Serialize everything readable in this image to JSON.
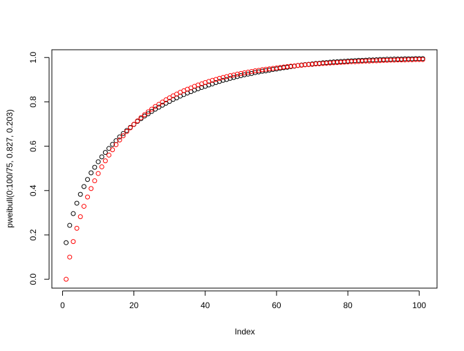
{
  "chart_data": {
    "type": "scatter",
    "xlabel": "Index",
    "ylabel": "pweibull(0:100/75, 0.827, 0.203)",
    "x": [
      1,
      2,
      3,
      4,
      5,
      6,
      7,
      8,
      9,
      10,
      11,
      12,
      13,
      14,
      15,
      16,
      17,
      18,
      19,
      20,
      21,
      22,
      23,
      24,
      25,
      26,
      27,
      28,
      29,
      30,
      31,
      32,
      33,
      34,
      35,
      36,
      37,
      38,
      39,
      40,
      41,
      42,
      43,
      44,
      45,
      46,
      47,
      48,
      49,
      50,
      51,
      52,
      53,
      54,
      55,
      56,
      57,
      58,
      59,
      60,
      61,
      62,
      63,
      64,
      65,
      66,
      67,
      68,
      69,
      70,
      71,
      72,
      73,
      74,
      75,
      76,
      77,
      78,
      79,
      80,
      81,
      82,
      83,
      84,
      85,
      86,
      87,
      88,
      89,
      90,
      91,
      92,
      93,
      94,
      95,
      96,
      97,
      98,
      99,
      100,
      101
    ],
    "series": [
      {
        "color": "#000000",
        "values": [
          0.165,
          0.243,
          0.296,
          0.343,
          0.383,
          0.418,
          0.45,
          0.48,
          0.505,
          0.53,
          0.552,
          0.572,
          0.59,
          0.608,
          0.625,
          0.642,
          0.657,
          0.671,
          0.685,
          0.698,
          0.712,
          0.724,
          0.736,
          0.746,
          0.757,
          0.767,
          0.776,
          0.785,
          0.794,
          0.802,
          0.811,
          0.818,
          0.826,
          0.833,
          0.84,
          0.846,
          0.853,
          0.859,
          0.865,
          0.87,
          0.876,
          0.881,
          0.887,
          0.892,
          0.897,
          0.901,
          0.906,
          0.91,
          0.914,
          0.918,
          0.922,
          0.925,
          0.928,
          0.932,
          0.935,
          0.938,
          0.94,
          0.943,
          0.946,
          0.948,
          0.951,
          0.954,
          0.956,
          0.959,
          0.961,
          0.964,
          0.966,
          0.968,
          0.969,
          0.971,
          0.973,
          0.974,
          0.976,
          0.977,
          0.979,
          0.98,
          0.981,
          0.982,
          0.983,
          0.984,
          0.985,
          0.986,
          0.987,
          0.987,
          0.988,
          0.989,
          0.989,
          0.99,
          0.991,
          0.991,
          0.992,
          0.992,
          0.993,
          0.993,
          0.993,
          0.994,
          0.994,
          0.994,
          0.995,
          0.995,
          0.995
        ]
      },
      {
        "color": "#ff0000",
        "values": [
          0,
          0.1,
          0.17,
          0.23,
          0.282,
          0.329,
          0.371,
          0.409,
          0.444,
          0.477,
          0.507,
          0.534,
          0.56,
          0.584,
          0.607,
          0.628,
          0.647,
          0.666,
          0.683,
          0.699,
          0.714,
          0.729,
          0.742,
          0.755,
          0.767,
          0.779,
          0.789,
          0.799,
          0.809,
          0.818,
          0.827,
          0.835,
          0.843,
          0.85,
          0.857,
          0.863,
          0.87,
          0.876,
          0.881,
          0.887,
          0.892,
          0.897,
          0.901,
          0.906,
          0.91,
          0.914,
          0.918,
          0.921,
          0.925,
          0.928,
          0.931,
          0.934,
          0.937,
          0.94,
          0.942,
          0.945,
          0.947,
          0.949,
          0.951,
          0.953,
          0.955,
          0.957,
          0.959,
          0.961,
          0.962,
          0.964,
          0.965,
          0.967,
          0.968,
          0.969,
          0.971,
          0.972,
          0.973,
          0.974,
          0.975,
          0.976,
          0.977,
          0.978,
          0.979,
          0.98,
          0.981,
          0.981,
          0.982,
          0.983,
          0.984,
          0.984,
          0.985,
          0.985,
          0.986,
          0.987,
          0.987,
          0.988,
          0.988,
          0.989,
          0.989,
          0.989,
          0.99,
          0.99,
          0.991,
          0.991,
          0.991
        ]
      }
    ],
    "xlim": [
      -3,
      105
    ],
    "ylim": [
      -0.04,
      1.035
    ],
    "xticks": [
      0,
      20,
      40,
      60,
      80,
      100
    ],
    "yticks": [
      {
        "value": 0,
        "label": "0.0"
      },
      0.2,
      0.4,
      0.6,
      0.8,
      {
        "value": 1,
        "label": "1.0"
      }
    ],
    "grid": false
  }
}
